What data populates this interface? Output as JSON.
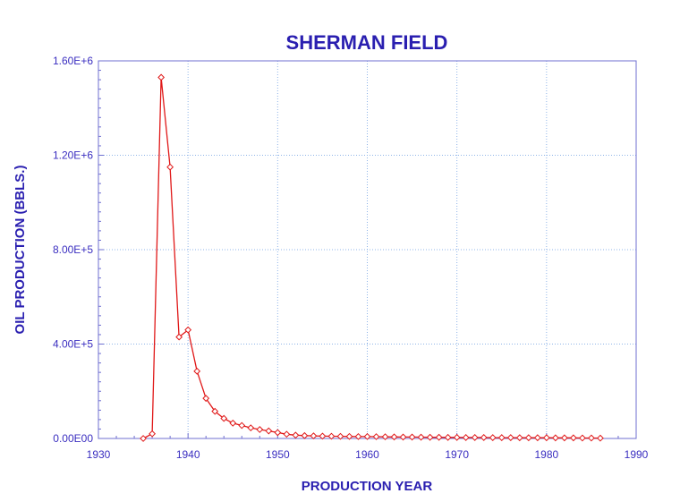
{
  "colors": {
    "title": "#2a1fb0",
    "axis_text": "#3a2ec0",
    "frame": "#6f6fd0",
    "grid": "#8fb4e8",
    "series": "#e01818"
  },
  "chart_data": {
    "type": "line",
    "title": "SHERMAN FIELD",
    "xlabel": "PRODUCTION YEAR",
    "ylabel": "OIL PRODUCTION (BBLS.)",
    "xlim": [
      1930,
      1990
    ],
    "ylim": [
      0,
      1600000
    ],
    "x_ticks": [
      1930,
      1940,
      1950,
      1960,
      1970,
      1980,
      1990
    ],
    "x_tick_labels": [
      "1930",
      "1940",
      "1950",
      "1960",
      "1970",
      "1980",
      "1990"
    ],
    "y_ticks": [
      0,
      400000,
      800000,
      1200000,
      1600000
    ],
    "y_tick_labels": [
      "0.00E00",
      "4.00E+5",
      "8.00E+5",
      "1.20E+6",
      "1.60E+6"
    ],
    "grid": true,
    "marker": "diamond",
    "series": [
      {
        "x": [
          1935,
          1936,
          1937,
          1938,
          1939,
          1940,
          1941,
          1942,
          1943,
          1944,
          1945,
          1946,
          1947,
          1948,
          1949,
          1950,
          1951,
          1952,
          1953,
          1954,
          1955,
          1956,
          1957,
          1958,
          1959,
          1960,
          1961,
          1962,
          1963,
          1964,
          1965,
          1966,
          1967,
          1968,
          1969,
          1970,
          1971,
          1972,
          1973,
          1974,
          1975,
          1976,
          1977,
          1978,
          1979,
          1980,
          1981,
          1982,
          1983,
          1984,
          1985,
          1986
        ],
        "y": [
          0,
          20000,
          1530000,
          1150000,
          430000,
          460000,
          285000,
          170000,
          115000,
          85000,
          65000,
          55000,
          45000,
          38000,
          32000,
          25000,
          18000,
          14000,
          12000,
          11000,
          10000,
          9500,
          9000,
          8500,
          8000,
          8000,
          7500,
          7000,
          6500,
          6000,
          6000,
          5500,
          5000,
          5000,
          4500,
          4500,
          4000,
          4000,
          4000,
          3500,
          3500,
          3500,
          3000,
          3000,
          3000,
          3000,
          2500,
          2500,
          2500,
          2000,
          2000,
          1500
        ]
      }
    ]
  }
}
